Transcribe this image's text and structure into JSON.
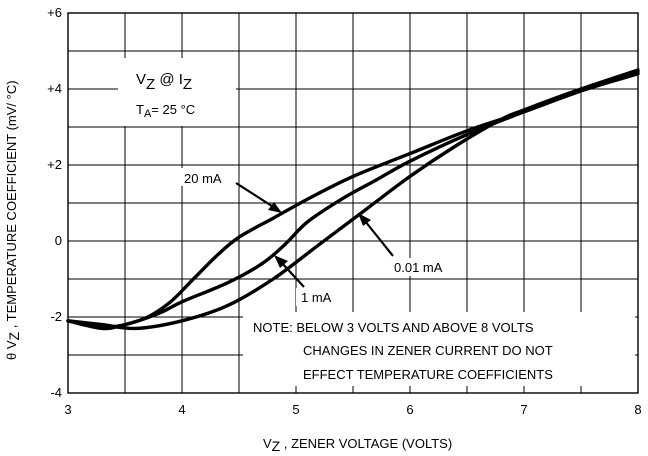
{
  "chart_data": {
    "type": "line",
    "title": "",
    "xlabel": {
      "main": "V",
      "sub": "Z",
      "rest": " , ZENER VOLTAGE (VOLTS)"
    },
    "ylabel": {
      "prefix": "θ V",
      "sub": "Z",
      "rest": " , TEMPERATURE COEFFICIENT (mV/ °C)"
    },
    "xlim": [
      3,
      8
    ],
    "ylim": [
      -4,
      6
    ],
    "x_ticks": [
      {
        "value": 3,
        "label": "3"
      },
      {
        "value": 4,
        "label": "4"
      },
      {
        "value": 5,
        "label": "5"
      },
      {
        "value": 6,
        "label": "6"
      },
      {
        "value": 7,
        "label": "7"
      },
      {
        "value": 8,
        "label": "8"
      }
    ],
    "y_ticks": [
      {
        "value": -4,
        "label": "-4"
      },
      {
        "value": -2,
        "label": "-2"
      },
      {
        "value": 0,
        "label": "0"
      },
      {
        "value": 2,
        "label": "+2"
      },
      {
        "value": 4,
        "label": "+4"
      },
      {
        "value": 6,
        "label": "+6"
      }
    ],
    "grid": true,
    "legend_box": {
      "line1_main": "V",
      "line1_sub": "Z",
      "line1_mid": " @ I",
      "line1_sub2": "Z",
      "line2_main": "T",
      "line2_sub": "A",
      "line2_rest": "= 25 °C"
    },
    "series": [
      {
        "name": "20 mA",
        "x": [
          3.0,
          3.3,
          3.5,
          3.7,
          3.9,
          4.1,
          4.3,
          4.5,
          4.8,
          5.1,
          5.5,
          6.0,
          6.5,
          7.0,
          7.5,
          8.0
        ],
        "y": [
          -2.1,
          -2.3,
          -2.2,
          -2.0,
          -1.6,
          -1.0,
          -0.4,
          0.1,
          0.6,
          1.1,
          1.7,
          2.3,
          2.9,
          3.4,
          3.95,
          4.4
        ]
      },
      {
        "name": "1 mA",
        "x": [
          3.0,
          3.3,
          3.5,
          3.8,
          4.0,
          4.4,
          4.7,
          4.9,
          5.1,
          5.4,
          5.7,
          6.0,
          6.5,
          7.0,
          7.5,
          8.0
        ],
        "y": [
          -2.1,
          -2.25,
          -2.2,
          -1.9,
          -1.6,
          -1.1,
          -0.6,
          -0.1,
          0.5,
          1.1,
          1.6,
          2.1,
          2.8,
          3.4,
          3.95,
          4.45
        ]
      },
      {
        "name": "0.01 mA",
        "x": [
          3.0,
          3.3,
          3.6,
          4.0,
          4.4,
          4.8,
          5.2,
          5.6,
          6.0,
          6.4,
          6.8,
          7.0,
          7.5,
          8.0
        ],
        "y": [
          -2.1,
          -2.2,
          -2.3,
          -2.1,
          -1.7,
          -1.0,
          -0.1,
          0.8,
          1.7,
          2.5,
          3.2,
          3.45,
          4.0,
          4.5
        ]
      }
    ],
    "annotations": {
      "label_20mA": "20 mA",
      "label_1mA": "1 mA",
      "label_001mA": "0.01 mA",
      "note_lines": [
        "NOTE: BELOW 3 VOLTS AND ABOVE 8 VOLTS",
        "CHANGES IN ZENER CURRENT DO NOT",
        "EFFECT TEMPERATURE COEFFICIENTS"
      ]
    }
  }
}
